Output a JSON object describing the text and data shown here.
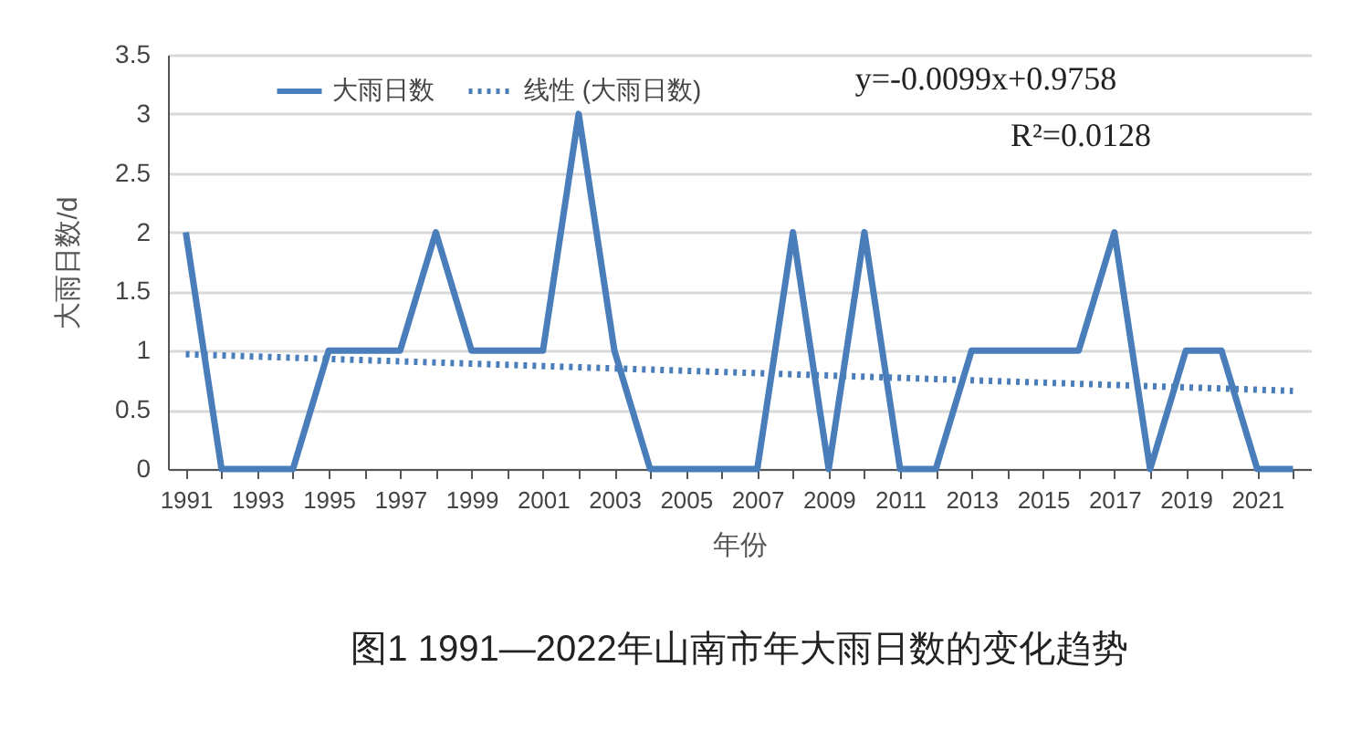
{
  "chart_data": {
    "type": "line",
    "title": "图1  1991—2022年山南市年大雨日数的变化趋势",
    "xlabel": "年份",
    "ylabel": "大雨日数/d",
    "categories": [
      "1991",
      null,
      "1993",
      null,
      "1995",
      null,
      "1997",
      null,
      "1999",
      null,
      "2001",
      null,
      "2003",
      null,
      "2005",
      null,
      "2007",
      null,
      "2009",
      null,
      "2011",
      null,
      "2013",
      null,
      "2015",
      null,
      "2017",
      null,
      "2019",
      null,
      "2021",
      null
    ],
    "series": [
      {
        "name": "大雨日数",
        "color": "#4a7ebb",
        "line_style": "solid",
        "values": [
          2,
          0,
          0,
          0,
          1,
          1,
          1,
          2,
          1,
          1,
          1,
          3,
          1,
          0,
          0,
          0,
          0,
          2,
          0,
          2,
          0,
          0,
          1,
          1,
          1,
          1,
          2,
          0,
          1,
          1,
          0,
          0
        ]
      },
      {
        "name": "线性 (大雨日数)",
        "color": "#4a7ebb",
        "line_style": "dotted",
        "values": [
          0.97,
          0.96,
          0.95,
          0.94,
          0.93,
          0.92,
          0.91,
          0.9,
          0.89,
          0.88,
          0.87,
          0.86,
          0.85,
          0.84,
          0.83,
          0.82,
          0.81,
          0.8,
          0.79,
          0.78,
          0.77,
          0.76,
          0.75,
          0.74,
          0.73,
          0.72,
          0.71,
          0.7,
          0.69,
          0.68,
          0.67,
          0.66
        ]
      }
    ],
    "ylim": [
      0,
      3.5
    ],
    "yticks": [
      0,
      0.5,
      1,
      1.5,
      2,
      2.5,
      3,
      3.5
    ],
    "grid": "y",
    "legend": "top",
    "marker": "none",
    "annotations": [
      "y=-0.0099x+0.9758",
      "R²=0.0128"
    ]
  }
}
